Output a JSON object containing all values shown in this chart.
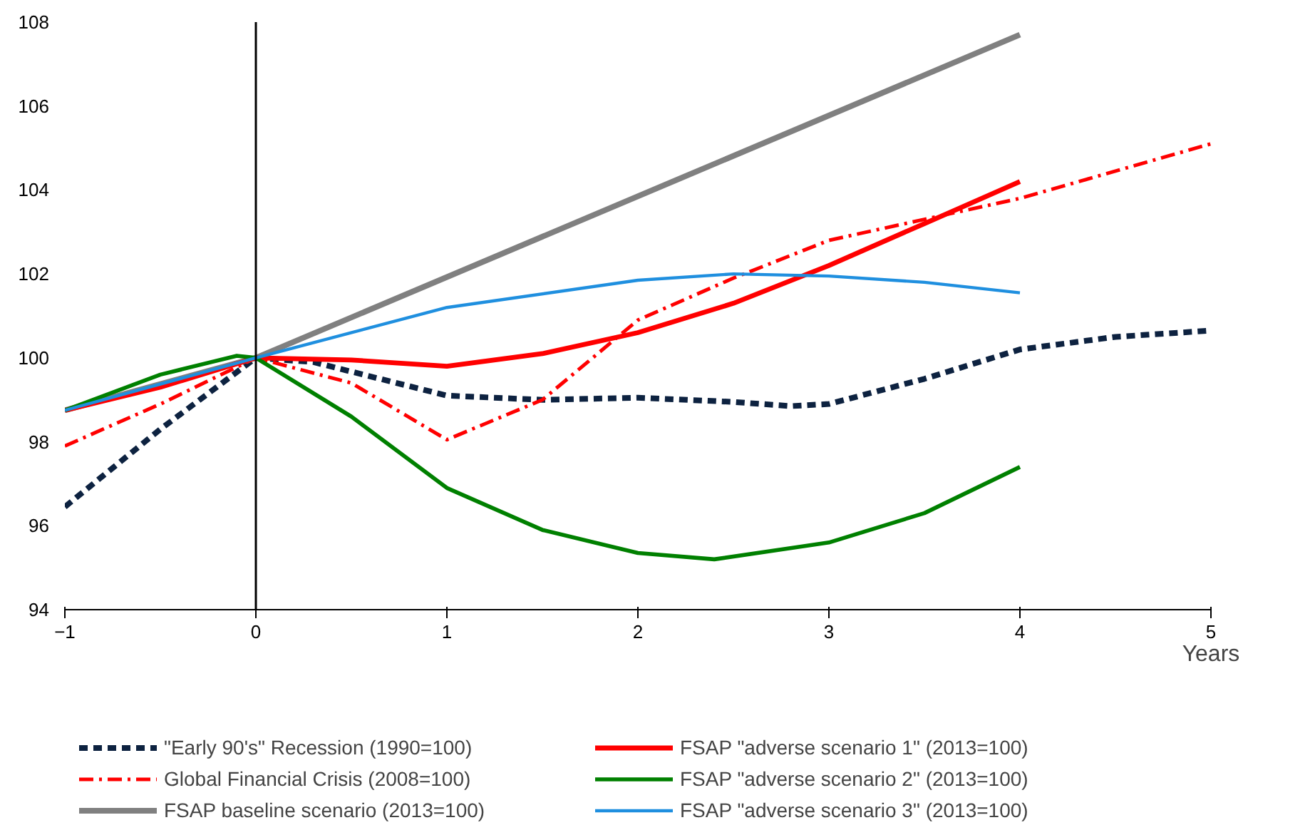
{
  "chart_data": {
    "type": "line",
    "xlabel": "Years",
    "xlim": [
      -1,
      5
    ],
    "ylim": [
      94,
      108
    ],
    "xticks": [
      -1,
      0,
      1,
      2,
      3,
      4,
      5
    ],
    "yticks": [
      94,
      96,
      98,
      100,
      102,
      104,
      106,
      108
    ],
    "grid": false,
    "legend": "bottom",
    "marker": "none",
    "ref_lines": [
      {
        "axis": "x",
        "value": 0,
        "color": "#000000"
      }
    ],
    "series": [
      {
        "name": "\"Early 90's\" Recession (1990=100)",
        "color": "#0d2240",
        "line_style": "dashed",
        "x": [
          -1,
          -0.5,
          0,
          0.3,
          1,
          1.5,
          2,
          2.5,
          2.8,
          3,
          3.5,
          4,
          4.5,
          5
        ],
        "values": [
          96.45,
          98.3,
          100,
          99.9,
          99.1,
          99.0,
          99.05,
          98.95,
          98.85,
          98.9,
          99.5,
          100.2,
          100.5,
          100.65
        ]
      },
      {
        "name": "Global Financial Crisis (2008=100)",
        "color": "#ff0000",
        "line_style": "dashdot",
        "x": [
          -1,
          -0.5,
          0,
          0.5,
          1,
          1.5,
          2,
          2.5,
          3,
          3.5,
          4,
          5
        ],
        "values": [
          97.9,
          98.9,
          100,
          99.4,
          98.05,
          99.0,
          100.9,
          101.9,
          102.8,
          103.3,
          103.8,
          105.1
        ]
      },
      {
        "name": "FSAP baseline scenario (2013=100)",
        "color": "#808080",
        "line_style": "solid",
        "x": [
          -1,
          0,
          4
        ],
        "values": [
          98.75,
          100,
          107.7
        ]
      },
      {
        "name": "FSAP \"adverse scenario 1\" (2013=100)",
        "color": "#ff0000",
        "line_style": "solid",
        "x": [
          -1,
          -0.5,
          0,
          0.5,
          1,
          1.5,
          2,
          2.5,
          3,
          3.5,
          4
        ],
        "values": [
          98.75,
          99.3,
          100,
          99.95,
          99.8,
          100.1,
          100.6,
          101.3,
          102.2,
          103.2,
          104.2
        ]
      },
      {
        "name": "FSAP \"adverse scenario 2\" (2013=100)",
        "color": "#008000",
        "line_style": "solid",
        "x": [
          -1,
          -0.5,
          -0.1,
          0,
          0.5,
          1,
          1.5,
          2,
          2.4,
          3,
          3.5,
          4
        ],
        "values": [
          98.75,
          99.6,
          100.05,
          100,
          98.6,
          96.9,
          95.9,
          95.35,
          95.2,
          95.6,
          96.3,
          97.4
        ]
      },
      {
        "name": "FSAP \"adverse scenario 3\" (2013=100)",
        "color": "#1f8fdf",
        "line_style": "solid",
        "x": [
          -1,
          0,
          1,
          2,
          2.5,
          3,
          3.5,
          4
        ],
        "values": [
          98.75,
          100,
          101.2,
          101.85,
          102.0,
          101.95,
          101.8,
          101.55
        ]
      }
    ]
  }
}
